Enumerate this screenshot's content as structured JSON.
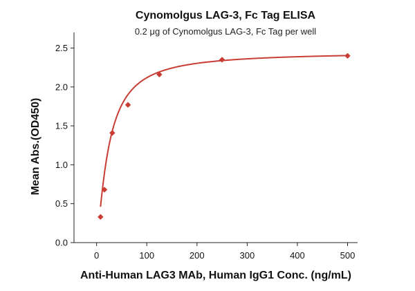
{
  "chart_data": {
    "type": "scatter",
    "title": "Cynomolgus LAG-3, Fc Tag ELISA",
    "subtitle": "0.2 μg of Cynomolgus LAG-3, Fc Tag per well",
    "xlabel": "Anti-Human LAG3 MAb, Human IgG1 Conc. (ng/mL)",
    "ylabel": "Mean Abs.(OD450)",
    "xlim": [
      -45,
      520
    ],
    "ylim": [
      0,
      2.7
    ],
    "x_ticks": [
      0,
      100,
      200,
      300,
      400,
      500
    ],
    "x_tick_labels": [
      "0",
      "100",
      "200",
      "300",
      "400",
      "500"
    ],
    "y_ticks": [
      0.0,
      0.5,
      1.0,
      1.5,
      2.0,
      2.5
    ],
    "y_tick_labels": [
      "0.0",
      "0.5",
      "1.0",
      "1.5",
      "2.0",
      "2.5"
    ],
    "grid": false,
    "colors": {
      "series": "#c83c34",
      "axis": "#222222"
    },
    "series": [
      {
        "name": "Cynomolgus LAG-3, Fc Tag",
        "marker": "diamond",
        "x": [
          7.8,
          15.6,
          31.25,
          62.5,
          125,
          250,
          500
        ],
        "y": [
          0.33,
          0.68,
          1.41,
          1.77,
          2.16,
          2.35,
          2.4
        ]
      }
    ],
    "fit_curve": {
      "model": "4PL",
      "bottom": 0.0,
      "top": 2.45,
      "ec50": 24,
      "hill": 1.3,
      "x_range": [
        7.8,
        500
      ]
    }
  }
}
